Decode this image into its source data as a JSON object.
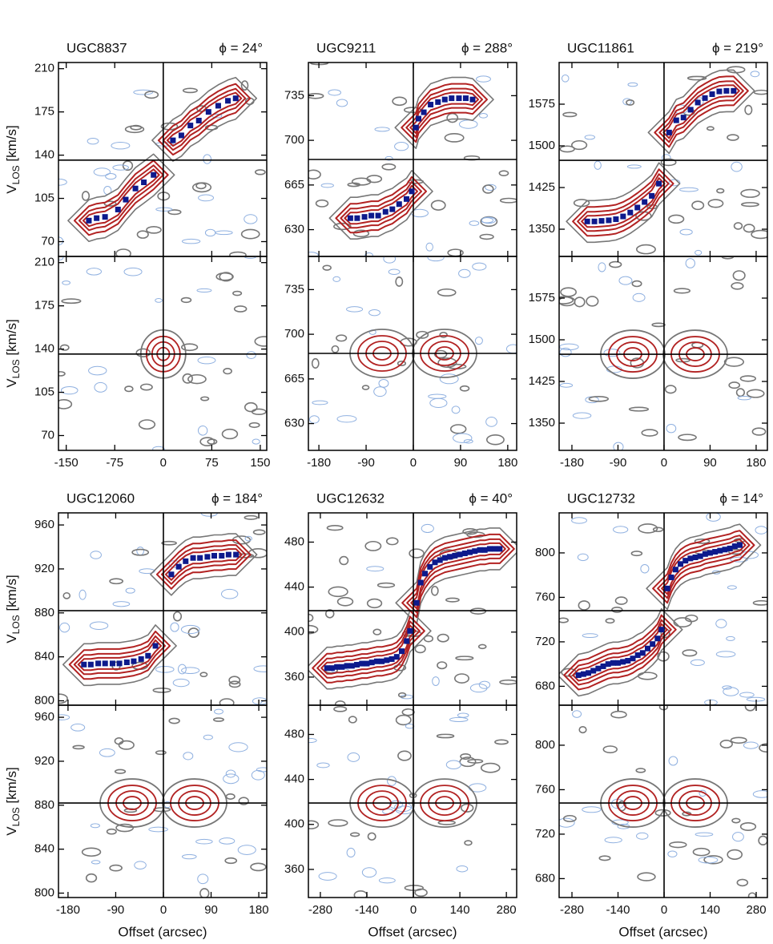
{
  "chart_data": [
    {
      "type": "scatter",
      "title": "UGC8837",
      "annotation": "ϕ = 24°",
      "ylabel": [
        "V",
        "LOS",
        " [km/s]"
      ],
      "xlim": [
        -162,
        160
      ],
      "xticks": [
        -150,
        -75,
        0,
        75,
        150
      ],
      "ylim": [
        58,
        215
      ],
      "yticks": [
        70,
        105,
        140,
        175,
        210
      ],
      "hline": 136,
      "vline": 0,
      "color": "#0d1a8c",
      "x": [
        -115,
        -103,
        -90,
        -70,
        -58,
        -43,
        -30,
        -15,
        15,
        28,
        42,
        55,
        70,
        85,
        100,
        112
      ],
      "values": [
        87,
        89,
        90,
        96,
        104,
        113,
        118,
        124,
        152,
        156,
        164,
        168,
        175,
        180,
        184,
        186
      ]
    },
    {
      "type": "scatter",
      "title": "UGC9211",
      "annotation": "ϕ = 288°",
      "xlim": [
        -200,
        197
      ],
      "xticks": [
        -180,
        -90,
        0,
        90,
        180
      ],
      "ylim": [
        609,
        761
      ],
      "yticks": [
        630,
        665,
        700,
        735
      ],
      "hline": 685,
      "vline": 0,
      "color": "#0d1a8c",
      "x": [
        -120,
        -107,
        -93,
        -80,
        -67,
        -53,
        -40,
        -27,
        -13,
        -3,
        5,
        10,
        20,
        33,
        47,
        60,
        73,
        87,
        100,
        113
      ],
      "values": [
        639,
        639,
        640,
        641,
        641,
        644,
        646,
        650,
        654,
        660,
        710,
        717,
        722,
        728,
        730,
        732,
        733,
        733,
        733,
        732
      ]
    },
    {
      "type": "scatter",
      "title": "UGC11861",
      "annotation": "ϕ = 219°",
      "xlim": [
        -205,
        202
      ],
      "xticks": [
        -180,
        -90,
        0,
        90,
        180
      ],
      "ylim": [
        1301,
        1650
      ],
      "yticks": [
        1350,
        1425,
        1500,
        1575
      ],
      "hline": 1474,
      "vline": 0,
      "color": "#0d1a8c",
      "x": [
        -150,
        -136,
        -122,
        -108,
        -94,
        -80,
        -66,
        -52,
        -38,
        -24,
        -10,
        10,
        24,
        38,
        52,
        66,
        80,
        94,
        108,
        122,
        136
      ],
      "values": [
        1364,
        1364,
        1365,
        1366,
        1368,
        1373,
        1380,
        1389,
        1399,
        1410,
        1432,
        1524,
        1546,
        1551,
        1565,
        1578,
        1586,
        1593,
        1598,
        1599,
        1599
      ]
    },
    {
      "type": "scatter",
      "title": "UGC12060",
      "annotation": "ϕ = 184°",
      "ylabel": [
        "V",
        "LOS",
        " [km/s]"
      ],
      "xlabel": "Offset (arcsec)",
      "xlim": [
        -198,
        195
      ],
      "xticks": [
        -180,
        -90,
        0,
        90,
        180
      ],
      "ylim": [
        796,
        971
      ],
      "yticks": [
        800,
        840,
        880,
        920,
        960
      ],
      "hline": 882,
      "vline": 0,
      "color": "#0d1a8c",
      "x": [
        -150,
        -137,
        -123,
        -110,
        -96,
        -83,
        -69,
        -56,
        -42,
        -29,
        -15,
        15,
        29,
        42,
        56,
        69,
        83,
        96,
        110,
        123,
        137
      ],
      "values": [
        833,
        833,
        834,
        834,
        834,
        834,
        835,
        836,
        838,
        841,
        850,
        915,
        922,
        927,
        930,
        930,
        931,
        932,
        932,
        933,
        933
      ]
    },
    {
      "type": "scatter",
      "title": "UGC12632",
      "annotation": "ϕ = 40°",
      "xlabel": "Offset (arcsec)",
      "xlim": [
        -316,
        311
      ],
      "xticks": [
        -280,
        -140,
        0,
        140,
        280
      ],
      "ylim": [
        335,
        506
      ],
      "yticks": [
        360,
        400,
        440,
        480
      ],
      "hline": 419,
      "vline": 0,
      "color": "#0d1a8c",
      "x": [
        -260,
        -245,
        -230,
        -215,
        -200,
        -185,
        -170,
        -155,
        -140,
        -125,
        -110,
        -95,
        -80,
        -65,
        -50,
        -35,
        -20,
        -10,
        10,
        22,
        35,
        50,
        65,
        80,
        95,
        110,
        125,
        140,
        155,
        170,
        185,
        200,
        215,
        230,
        245,
        260
      ],
      "values": [
        368,
        368,
        369,
        369,
        370,
        370,
        371,
        372,
        372,
        373,
        374,
        374,
        375,
        376,
        378,
        383,
        392,
        401,
        426,
        444,
        452,
        458,
        462,
        464,
        466,
        467,
        468,
        469,
        470,
        471,
        472,
        473,
        473,
        474,
        474,
        474
      ]
    },
    {
      "type": "scatter",
      "title": "UGC12732",
      "annotation": "ϕ = 14°",
      "xlabel": "Offset (arcsec)",
      "xlim": [
        -319,
        314
      ],
      "xticks": [
        -280,
        -140,
        0,
        140,
        280
      ],
      "ylim": [
        663,
        836
      ],
      "yticks": [
        680,
        720,
        760,
        800
      ],
      "hline": 748,
      "vline": 0,
      "color": "#0d1a8c",
      "x": [
        -260,
        -245,
        -230,
        -215,
        -200,
        -185,
        -170,
        -155,
        -140,
        -125,
        -110,
        -95,
        -80,
        -65,
        -50,
        -35,
        -20,
        -8,
        10,
        22,
        35,
        50,
        65,
        80,
        95,
        110,
        125,
        140,
        155,
        170,
        185,
        200,
        215,
        230
      ],
      "values": [
        690,
        691,
        692,
        694,
        696,
        698,
        700,
        701,
        701,
        702,
        703,
        705,
        708,
        710,
        714,
        718,
        723,
        731,
        768,
        778,
        785,
        790,
        793,
        795,
        796,
        797,
        799,
        800,
        801,
        802,
        803,
        804,
        806,
        807
      ]
    }
  ]
}
